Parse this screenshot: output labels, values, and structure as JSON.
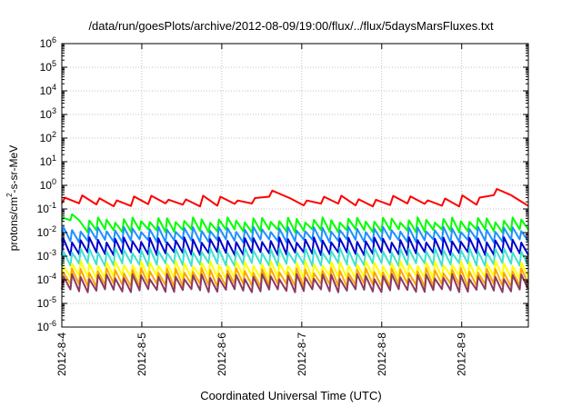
{
  "chart_data": {
    "type": "line",
    "title": "/data/run/goesPlots/archive/2012-08-09/19:00/flux/../flux/5daysMarsFluxes.txt",
    "xlabel": "Coordinated Universal Time (UTC)",
    "ylabel_parts": [
      "protons/cm",
      "2",
      "-s-sr-MeV"
    ],
    "y_scale": "log",
    "ylim": [
      1e-06,
      1000000.0
    ],
    "y_ticks": [
      {
        "mantissa": "10",
        "exp": "-6"
      },
      {
        "mantissa": "10",
        "exp": "-5"
      },
      {
        "mantissa": "10",
        "exp": "-4"
      },
      {
        "mantissa": "10",
        "exp": "-3"
      },
      {
        "mantissa": "10",
        "exp": "-2"
      },
      {
        "mantissa": "10",
        "exp": "-1"
      },
      {
        "mantissa": "10",
        "exp": "0"
      },
      {
        "mantissa": "10",
        "exp": "1"
      },
      {
        "mantissa": "10",
        "exp": "2"
      },
      {
        "mantissa": "10",
        "exp": "3"
      },
      {
        "mantissa": "10",
        "exp": "4"
      },
      {
        "mantissa": "10",
        "exp": "5"
      },
      {
        "mantissa": "10",
        "exp": "6"
      }
    ],
    "xlim": [
      "2012-08-04T00:00",
      "2012-08-09T20:00"
    ],
    "x_ticks": [
      "2012-8-4",
      "2012-8-5",
      "2012-8-6",
      "2012-8-7",
      "2012-8-8",
      "2012-8-9"
    ],
    "grid": true,
    "series": [
      {
        "color": "#ff0000",
        "low": 0.15,
        "high": 0.3,
        "teeth": 27,
        "bumps": [
          {
            "x": "2012-08-06T18:00",
            "value": 0.6
          },
          {
            "x": "2012-08-09T10:00",
            "value": 0.7
          }
        ]
      },
      {
        "color": "#00ff00",
        "low": 0.012,
        "high": 0.035,
        "teeth": 54,
        "bumps": [
          {
            "x": "2012-08-04T04:00",
            "value": 0.06
          }
        ]
      },
      {
        "color": "#1e90ff",
        "low": 0.0045,
        "high": 0.014,
        "teeth": 54,
        "bumps": []
      },
      {
        "color": "#0000cd",
        "low": 0.0013,
        "high": 0.005,
        "teeth": 54,
        "bumps": []
      },
      {
        "color": "#40e0d0",
        "low": 0.00045,
        "high": 0.0018,
        "teeth": 54,
        "bumps": []
      },
      {
        "color": "#ffff00",
        "low": 0.00013,
        "high": 0.0005,
        "teeth": 54,
        "bumps": []
      },
      {
        "color": "#ffa500",
        "low": 6e-05,
        "high": 0.00025,
        "teeth": 54,
        "bumps": []
      },
      {
        "color": "#8b3a62",
        "low": 3.5e-05,
        "high": 0.00014,
        "teeth": 54,
        "bumps": []
      }
    ]
  }
}
